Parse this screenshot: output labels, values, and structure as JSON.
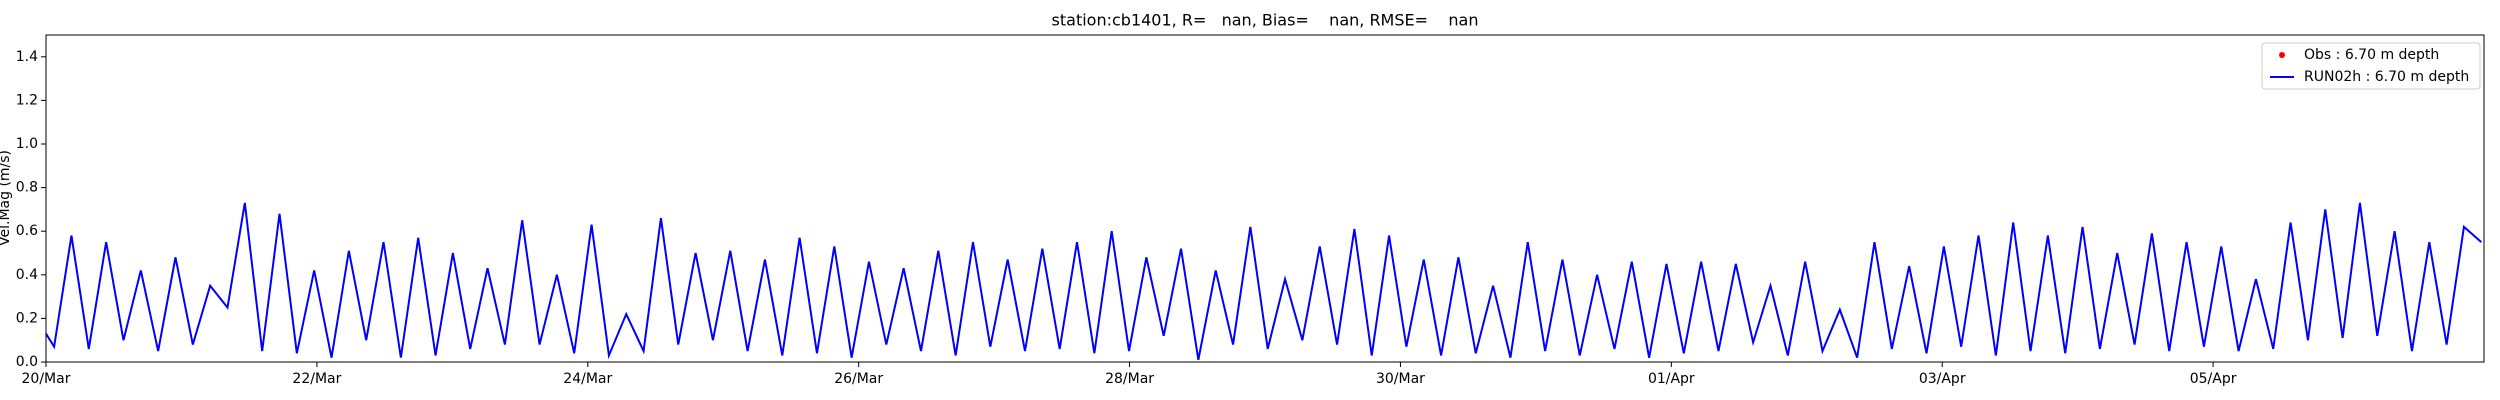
{
  "chart_data": {
    "type": "line",
    "title": "station:cb1401, R=   nan, Bias=    nan, RMSE=    nan",
    "y_label": "Vel.Mag (m/s)",
    "xlim": [
      0,
      18
    ],
    "xticks": [
      {
        "value": 0,
        "label": "20/Mar"
      },
      {
        "value": 2,
        "label": "22/Mar"
      },
      {
        "value": 4,
        "label": "24/Mar"
      },
      {
        "value": 6,
        "label": "26/Mar"
      },
      {
        "value": 8,
        "label": "28/Mar"
      },
      {
        "value": 10,
        "label": "30/Mar"
      },
      {
        "value": 12,
        "label": "01/Apr"
      },
      {
        "value": 14,
        "label": "03/Apr"
      },
      {
        "value": 16,
        "label": "05/Apr"
      }
    ],
    "ylim": [
      0,
      1.5
    ],
    "yticks": [
      {
        "value": 0,
        "label": "0.0"
      },
      {
        "value": 0.2,
        "label": "0.2"
      },
      {
        "value": 0.4,
        "label": "0.4"
      },
      {
        "value": 0.6,
        "label": "0.6"
      },
      {
        "value": 0.8,
        "label": "0.8"
      },
      {
        "value": 1,
        "label": "1.0"
      },
      {
        "value": 1.2,
        "label": "1.2"
      },
      {
        "value": 1.4,
        "label": "1.4"
      }
    ],
    "grid": false,
    "legend": "upper right",
    "x": [
      0,
      0.06,
      0.188,
      0.316,
      0.444,
      0.572,
      0.7,
      0.828,
      0.956,
      1.084,
      1.212,
      1.34,
      1.468,
      1.596,
      1.724,
      1.852,
      1.98,
      2.108,
      2.236,
      2.364,
      2.492,
      2.62,
      2.748,
      2.876,
      3.004,
      3.132,
      3.26,
      3.388,
      3.516,
      3.644,
      3.772,
      3.9,
      4.028,
      4.156,
      4.284,
      4.412,
      4.54,
      4.668,
      4.796,
      4.924,
      5.052,
      5.18,
      5.308,
      5.436,
      5.564,
      5.692,
      5.82,
      5.948,
      6.076,
      6.204,
      6.332,
      6.46,
      6.588,
      6.716,
      6.844,
      6.972,
      7.1,
      7.228,
      7.356,
      7.484,
      7.612,
      7.74,
      7.868,
      7.996,
      8.124,
      8.252,
      8.38,
      8.508,
      8.636,
      8.764,
      8.892,
      9.02,
      9.148,
      9.276,
      9.404,
      9.532,
      9.66,
      9.788,
      9.916,
      10.044,
      10.172,
      10.3,
      10.428,
      10.556,
      10.684,
      10.812,
      10.94,
      11.068,
      11.196,
      11.324,
      11.452,
      11.58,
      11.708,
      11.836,
      11.964,
      12.092,
      12.22,
      12.348,
      12.476,
      12.604,
      12.732,
      12.86,
      12.988,
      13.116,
      13.244,
      13.372,
      13.5,
      13.628,
      13.756,
      13.884,
      14.012,
      14.14,
      14.268,
      14.396,
      14.524,
      14.652,
      14.78,
      14.908,
      15.036,
      15.164,
      15.292,
      15.42,
      15.548,
      15.676,
      15.804,
      15.932,
      16.06,
      16.188,
      16.316,
      16.444,
      16.572,
      16.7,
      16.828,
      16.956,
      17.084,
      17.212,
      17.34,
      17.468,
      17.596,
      17.724,
      17.852,
      17.98
    ],
    "series": [
      {
        "name": "Obs : 6.70 m depth",
        "color": "#ff0000",
        "marker": "dot",
        "values": [
          null,
          null,
          null,
          null,
          null,
          null,
          null,
          null,
          null,
          null,
          null,
          null,
          null,
          null,
          null,
          null,
          null,
          null,
          null,
          null,
          null,
          null,
          null,
          null,
          null,
          null,
          null,
          null,
          null,
          null,
          null,
          null,
          null,
          null,
          null,
          null,
          null,
          null,
          null,
          null,
          null,
          null,
          null,
          null,
          null,
          null,
          null,
          null,
          null,
          null,
          null,
          null,
          null,
          null,
          null,
          null,
          null,
          null,
          null,
          null,
          null,
          null,
          null,
          null,
          null,
          null,
          null,
          null,
          null,
          null,
          null,
          null,
          null,
          null,
          null,
          null,
          null,
          null,
          null,
          null,
          null,
          null,
          null,
          null,
          null,
          null,
          null,
          null,
          null,
          null,
          null,
          null,
          null,
          null,
          null,
          null,
          null,
          null,
          null,
          null,
          null,
          null,
          null,
          null,
          null,
          null,
          null,
          null,
          null,
          null,
          null,
          null,
          null,
          null,
          null,
          null,
          null,
          null,
          null,
          null,
          null,
          null,
          null,
          null,
          null,
          null,
          null,
          null,
          null,
          null,
          null,
          null,
          null,
          null,
          null,
          null,
          null,
          null,
          null,
          null,
          null,
          null
        ]
      },
      {
        "name": "RUN02h : 6.70 m depth",
        "color": "#0000ff",
        "marker": "line",
        "values": [
          0.13,
          0.07,
          0.58,
          0.06,
          0.55,
          0.1,
          0.42,
          0.05,
          0.48,
          0.08,
          0.35,
          0.25,
          0.73,
          0.05,
          0.68,
          0.04,
          0.42,
          0.02,
          0.51,
          0.1,
          0.55,
          0.02,
          0.57,
          0.03,
          0.5,
          0.06,
          0.43,
          0.08,
          0.65,
          0.08,
          0.4,
          0.04,
          0.63,
          0.03,
          0.22,
          0.05,
          0.66,
          0.08,
          0.5,
          0.1,
          0.51,
          0.05,
          0.47,
          0.03,
          0.57,
          0.04,
          0.53,
          0.02,
          0.46,
          0.08,
          0.43,
          0.05,
          0.51,
          0.03,
          0.55,
          0.07,
          0.47,
          0.05,
          0.52,
          0.06,
          0.55,
          0.04,
          0.6,
          0.05,
          0.48,
          0.12,
          0.52,
          0.01,
          0.42,
          0.08,
          0.62,
          0.06,
          0.38,
          0.1,
          0.53,
          0.08,
          0.61,
          0.03,
          0.58,
          0.07,
          0.47,
          0.03,
          0.48,
          0.04,
          0.35,
          0.02,
          0.55,
          0.05,
          0.47,
          0.03,
          0.4,
          0.06,
          0.46,
          0.02,
          0.45,
          0.04,
          0.46,
          0.05,
          0.45,
          0.09,
          0.35,
          0.03,
          0.46,
          0.05,
          0.24,
          0.02,
          0.55,
          0.06,
          0.44,
          0.04,
          0.53,
          0.07,
          0.58,
          0.03,
          0.64,
          0.05,
          0.58,
          0.04,
          0.62,
          0.06,
          0.5,
          0.08,
          0.59,
          0.05,
          0.55,
          0.07,
          0.53,
          0.05,
          0.38,
          0.06,
          0.64,
          0.1,
          0.7,
          0.11,
          0.73,
          0.12,
          0.6,
          0.05,
          0.55,
          0.08,
          0.62,
          0.55
        ]
      }
    ]
  }
}
